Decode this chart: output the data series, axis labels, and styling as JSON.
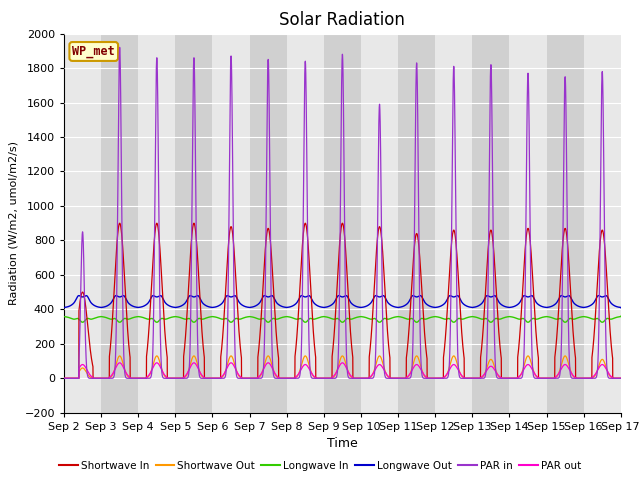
{
  "title": "Solar Radiation",
  "xlabel": "Time",
  "ylabel": "Radiation (W/m2, umol/m2/s)",
  "ylim": [
    -200,
    2000
  ],
  "yticks": [
    -200,
    0,
    200,
    400,
    600,
    800,
    1000,
    1200,
    1400,
    1600,
    1800,
    2000
  ],
  "n_days": 15,
  "colors": {
    "shortwave_in": "#cc0000",
    "shortwave_out": "#ff9900",
    "longwave_in": "#33cc00",
    "longwave_out": "#0000cc",
    "par_in": "#9933cc",
    "par_out": "#ff00cc"
  },
  "label_box": "WP_met",
  "plot_bg_light": "#e8e8e8",
  "plot_bg_dark": "#d0d0d0",
  "grid_color": "#ffffff",
  "sw_in_peaks": [
    500,
    900,
    900,
    900,
    880,
    870,
    900,
    900,
    880,
    840,
    860,
    860,
    870,
    870,
    860
  ],
  "sw_out_peaks": [
    60,
    130,
    130,
    130,
    130,
    130,
    130,
    130,
    130,
    130,
    130,
    110,
    130,
    130,
    110
  ],
  "par_in_peaks": [
    850,
    1920,
    1860,
    1860,
    1870,
    1850,
    1840,
    1880,
    1590,
    1830,
    1810,
    1820,
    1770,
    1750,
    1780
  ],
  "par_out_peaks": [
    80,
    90,
    90,
    90,
    90,
    90,
    80,
    90,
    80,
    80,
    80,
    70,
    80,
    80,
    80
  ],
  "lw_in_base": 360,
  "lw_out_base": 410,
  "lw_in_dip": 40,
  "lw_out_bump": 60
}
